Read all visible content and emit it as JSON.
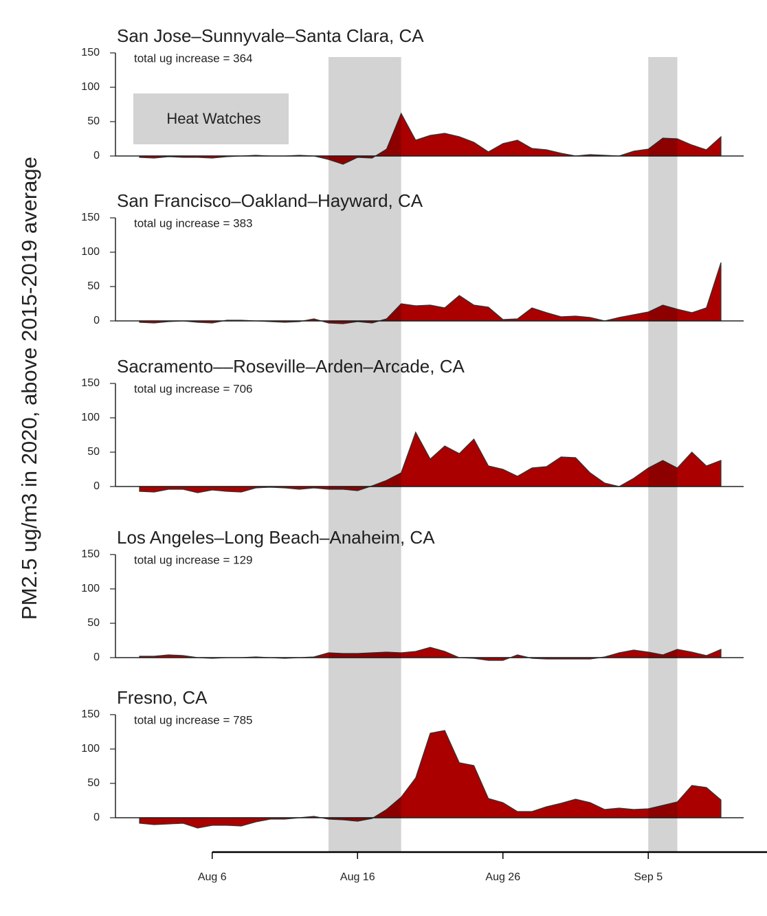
{
  "ylabel": "PM2.5 ug/m3 in 2020, above 2015-2019 average",
  "x": [
    "Aug 1",
    "Aug 2",
    "Aug 3",
    "Aug 4",
    "Aug 5",
    "Aug 6",
    "Aug 7",
    "Aug 8",
    "Aug 9",
    "Aug 10",
    "Aug 11",
    "Aug 12",
    "Aug 13",
    "Aug 14",
    "Aug 15",
    "Aug 16",
    "Aug 17",
    "Aug 18",
    "Aug 19",
    "Aug 20",
    "Aug 21",
    "Aug 22",
    "Aug 23",
    "Aug 24",
    "Aug 25",
    "Aug 26",
    "Aug 27",
    "Aug 28",
    "Aug 29",
    "Aug 30",
    "Aug 31",
    "Sep 1",
    "Sep 2",
    "Sep 3",
    "Sep 4",
    "Sep 5",
    "Sep 6",
    "Sep 7",
    "Sep 8",
    "Sep 9",
    "Sep 10"
  ],
  "xticks": [
    "Aug 6",
    "Aug 16",
    "Aug 26",
    "Sep 5"
  ],
  "heat_watches": {
    "label": "Heat Watches",
    "color": "#d3d3d3",
    "periods": [
      [
        "Aug 14",
        "Aug 19"
      ],
      [
        "Sep 5",
        "Sep 7"
      ]
    ]
  },
  "chart_data": [
    {
      "type": "area",
      "title": "San Jose–Sunnyvale–Santa Clara, CA",
      "annotation": "total ug increase = 364",
      "color": "#aa0000",
      "ylim": [
        -15,
        150
      ],
      "yticks": [
        0,
        50,
        100,
        150
      ],
      "values": [
        -2,
        -3,
        -1,
        -2,
        -2,
        -3,
        -1,
        0,
        1,
        0,
        0,
        1,
        0,
        -5,
        -12,
        -2,
        -3,
        10,
        62,
        23,
        30,
        33,
        28,
        20,
        6,
        18,
        23,
        11,
        9,
        4,
        0,
        2,
        1,
        0,
        7,
        10,
        26,
        25,
        16,
        9,
        28
      ]
    },
    {
      "type": "area",
      "title": "San Francisco–Oakland–Hayward, CA",
      "annotation": "total ug increase = 383",
      "color": "#aa0000",
      "ylim": [
        -15,
        150
      ],
      "yticks": [
        0,
        50,
        100,
        150
      ],
      "values": [
        -2,
        -3,
        -1,
        0,
        -2,
        -3,
        1,
        1,
        0,
        -1,
        -2,
        -1,
        3,
        -3,
        -4,
        -1,
        -3,
        3,
        25,
        22,
        23,
        19,
        37,
        23,
        20,
        2,
        3,
        19,
        12,
        6,
        7,
        5,
        0,
        5,
        9,
        13,
        23,
        17,
        12,
        19,
        85
      ]
    },
    {
      "type": "area",
      "title": "Sacramento––Roseville–Arden–Arcade, CA",
      "annotation": "total ug increase = 706",
      "color": "#aa0000",
      "ylim": [
        -15,
        150
      ],
      "yticks": [
        0,
        50,
        100,
        150
      ],
      "values": [
        -7,
        -8,
        -4,
        -4,
        -9,
        -5,
        -7,
        -8,
        -2,
        -1,
        -2,
        -4,
        -2,
        -4,
        -4,
        -6,
        1,
        9,
        20,
        79,
        40,
        59,
        48,
        69,
        30,
        25,
        15,
        27,
        29,
        43,
        42,
        20,
        5,
        0,
        12,
        27,
        38,
        27,
        50,
        30,
        38
      ]
    },
    {
      "type": "area",
      "title": "Los Angeles–Long Beach–Anaheim, CA",
      "annotation": "total ug increase = 129",
      "color": "#aa0000",
      "ylim": [
        -15,
        150
      ],
      "yticks": [
        0,
        50,
        100,
        150
      ],
      "values": [
        2,
        2,
        4,
        3,
        0,
        -1,
        0,
        0,
        1,
        0,
        -1,
        0,
        1,
        7,
        6,
        6,
        7,
        8,
        7,
        9,
        15,
        9,
        0,
        -1,
        -4,
        -4,
        4,
        -1,
        -2,
        -2,
        -2,
        -2,
        1,
        7,
        11,
        8,
        4,
        12,
        8,
        3,
        12
      ]
    },
    {
      "type": "area",
      "title": "Fresno, CA",
      "annotation": "total ug increase = 785",
      "color": "#aa0000",
      "ylim": [
        -15,
        150
      ],
      "yticks": [
        0,
        50,
        100,
        150
      ],
      "values": [
        -8,
        -10,
        -9,
        -8,
        -15,
        -11,
        -11,
        -12,
        -6,
        -2,
        -2,
        0,
        2,
        -2,
        -3,
        -5,
        -1,
        12,
        30,
        58,
        123,
        127,
        80,
        76,
        28,
        22,
        9,
        9,
        16,
        21,
        27,
        22,
        12,
        14,
        12,
        13,
        18,
        23,
        47,
        44,
        26
      ]
    }
  ]
}
